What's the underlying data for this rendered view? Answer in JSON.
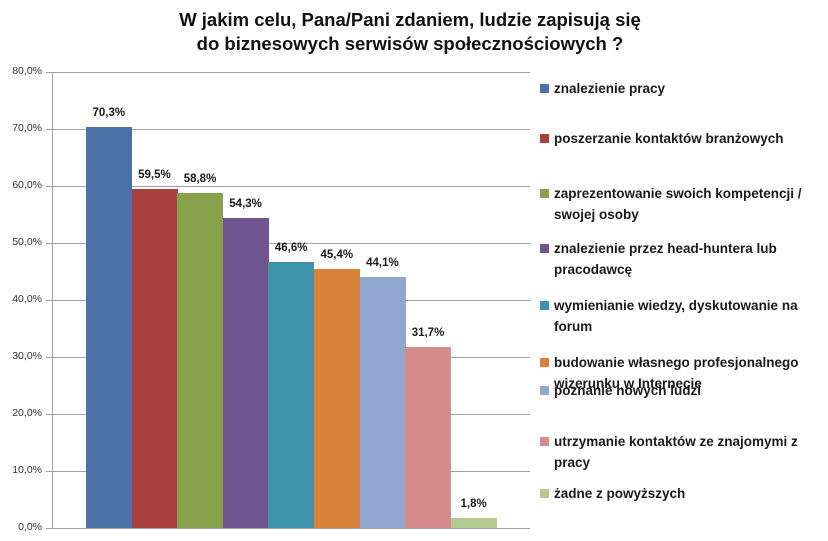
{
  "title_line1": "W jakim celu, Pana/Pani zdaniem, ludzie zapisują się",
  "title_line2": "do biznesowych serwisów społecznościowych ?",
  "chart_data": {
    "type": "bar",
    "title": "W jakim celu, Pana/Pani zdaniem, ludzie zapisują się do biznesowych serwisów społecznościowych ?",
    "xlabel": "",
    "ylabel": "",
    "ylim": [
      0,
      80
    ],
    "yticks": [
      "0,0%",
      "10,0%",
      "20,0%",
      "30,0%",
      "40,0%",
      "50,0%",
      "60,0%",
      "70,0%",
      "80,0%"
    ],
    "grid": true,
    "legend_position": "right",
    "categories": [
      "znalezienie pracy",
      "poszerzanie kontaktów branżowych",
      "zaprezentowanie swoich kompetencji / swojej osoby",
      "znalezienie przez head-huntera lub pracodawcę",
      "wymienianie wiedzy, dyskutowanie na forum",
      "budowanie własnego profesjonalnego wizerunku w Internecie",
      "poznanie nowych ludzi",
      "utrzymanie kontaktów ze znajomymi z pracy",
      "żadne z powyższych"
    ],
    "values": [
      70.3,
      59.5,
      58.8,
      54.3,
      46.6,
      45.4,
      44.1,
      31.7,
      1.8
    ],
    "value_labels": [
      "70,3%",
      "59,5%",
      "58,8%",
      "54,3%",
      "46,6%",
      "45,4%",
      "44,1%",
      "31,7%",
      "1,8%"
    ],
    "colors": [
      "#4a72a8",
      "#a8403e",
      "#87a24a",
      "#70548f",
      "#3d93aa",
      "#d9823a",
      "#91a7cf",
      "#d48c8c",
      "#b3cb93"
    ]
  },
  "legend": [
    {
      "line1": "znalezienie pracy",
      "line2": ""
    },
    {
      "line1": "poszerzanie kontaktów branżowych",
      "line2": ""
    },
    {
      "line1": "zaprezentowanie swoich kompetencji /",
      "line2": "swojej osoby"
    },
    {
      "line1": "znalezienie przez head-huntera lub",
      "line2": "pracodawcę"
    },
    {
      "line1": "wymienianie wiedzy, dyskutowanie na",
      "line2": "forum"
    },
    {
      "line1": "budowanie własnego profesjonalnego",
      "line2": "wizerunku w Internecie"
    },
    {
      "line1": "poznanie nowych ludzi",
      "line2": ""
    },
    {
      "line1": "utrzymanie kontaktów ze znajomymi z",
      "line2": "pracy"
    },
    {
      "line1": "żadne z powyższych",
      "line2": ""
    }
  ]
}
